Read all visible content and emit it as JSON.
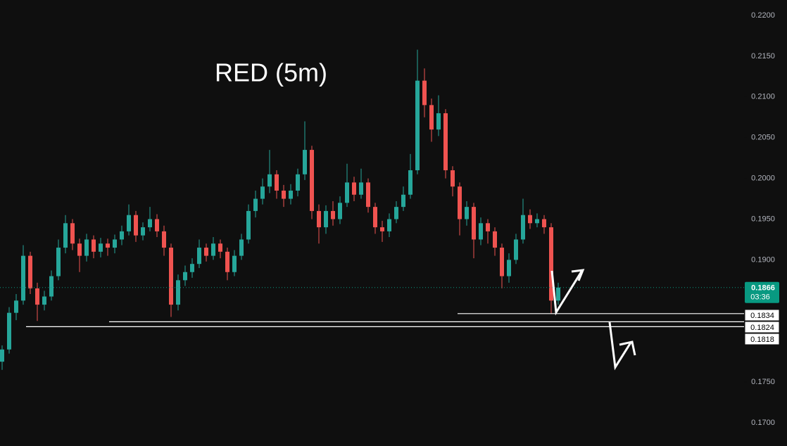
{
  "chart_data": {
    "type": "candlestick",
    "title": "RED (5m)",
    "up_color": "#26a69a",
    "down_color": "#ef5350",
    "ylim": [
      0.16715,
      0.2219
    ],
    "yticks": [
      {
        "value": 0.22,
        "label": "0.2200"
      },
      {
        "value": 0.215,
        "label": "0.2150"
      },
      {
        "value": 0.21,
        "label": "0.2100"
      },
      {
        "value": 0.205,
        "label": "0.2050"
      },
      {
        "value": 0.2,
        "label": "0.2000"
      },
      {
        "value": 0.195,
        "label": "0.1950"
      },
      {
        "value": 0.19,
        "label": "0.1900"
      },
      {
        "value": 0.175,
        "label": "0.1750"
      },
      {
        "value": 0.17,
        "label": "0.1700"
      }
    ],
    "open": [
      0.1775,
      0.179,
      0.1835,
      0.185,
      0.1905,
      0.1865,
      0.1845,
      0.1855,
      0.188,
      0.1915,
      0.1945,
      0.192,
      0.1905,
      0.1925,
      0.191,
      0.192,
      0.1915,
      0.1925,
      0.1935,
      0.1955,
      0.193,
      0.194,
      0.195,
      0.1935,
      0.1915,
      0.1845,
      0.1875,
      0.1885,
      0.1895,
      0.1915,
      0.1905,
      0.192,
      0.191,
      0.1885,
      0.1905,
      0.1925,
      0.196,
      0.1975,
      0.199,
      0.2005,
      0.1985,
      0.1975,
      0.1985,
      0.2005,
      0.2035,
      0.196,
      0.194,
      0.196,
      0.195,
      0.197,
      0.1995,
      0.198,
      0.1995,
      0.1965,
      0.194,
      0.1935,
      0.195,
      0.1965,
      0.198,
      0.201,
      0.212,
      0.209,
      0.206,
      0.208,
      0.201,
      0.199,
      0.195,
      0.1965,
      0.1925,
      0.1945,
      0.1935,
      0.1915,
      0.188,
      0.19,
      0.1925,
      0.1955,
      0.1945,
      0.195,
      0.194,
      0.185
    ],
    "high": [
      0.1795,
      0.1842,
      0.1858,
      0.1918,
      0.191,
      0.1872,
      0.1862,
      0.1887,
      0.1925,
      0.1955,
      0.195,
      0.1926,
      0.1932,
      0.193,
      0.1927,
      0.1926,
      0.1931,
      0.1942,
      0.1968,
      0.196,
      0.1946,
      0.1965,
      0.1956,
      0.1942,
      0.192,
      0.1882,
      0.1893,
      0.1902,
      0.1925,
      0.192,
      0.1928,
      0.1925,
      0.1915,
      0.1912,
      0.1932,
      0.1968,
      0.1985,
      0.2,
      0.2035,
      0.201,
      0.1992,
      0.1993,
      0.2012,
      0.207,
      0.204,
      0.1968,
      0.1967,
      0.1972,
      0.1978,
      0.2018,
      0.2002,
      0.2012,
      0.2,
      0.197,
      0.1948,
      0.1957,
      0.1972,
      0.199,
      0.203,
      0.2158,
      0.2135,
      0.2098,
      0.2102,
      0.2085,
      0.2015,
      0.1995,
      0.1972,
      0.197,
      0.1952,
      0.195,
      0.194,
      0.192,
      0.1908,
      0.1932,
      0.1975,
      0.1962,
      0.1957,
      0.1955,
      0.1945,
      0.1872
    ],
    "low": [
      0.1765,
      0.1785,
      0.1826,
      0.1845,
      0.1858,
      0.1825,
      0.1838,
      0.185,
      0.1875,
      0.1908,
      0.1912,
      0.1885,
      0.1898,
      0.1902,
      0.1903,
      0.1905,
      0.1908,
      0.1918,
      0.193,
      0.1922,
      0.1924,
      0.1935,
      0.1928,
      0.1905,
      0.183,
      0.1838,
      0.1868,
      0.1878,
      0.189,
      0.1898,
      0.19,
      0.1902,
      0.1875,
      0.188,
      0.19,
      0.192,
      0.1952,
      0.1968,
      0.1982,
      0.1975,
      0.1965,
      0.1968,
      0.1978,
      0.1998,
      0.195,
      0.192,
      0.1932,
      0.1942,
      0.1944,
      0.1965,
      0.1972,
      0.1975,
      0.1958,
      0.1932,
      0.1922,
      0.1928,
      0.1945,
      0.196,
      0.1975,
      0.2005,
      0.2075,
      0.2045,
      0.2052,
      0.2,
      0.1978,
      0.193,
      0.1942,
      0.1902,
      0.1918,
      0.192,
      0.1905,
      0.1865,
      0.1872,
      0.1895,
      0.192,
      0.1938,
      0.194,
      0.1932,
      0.1834,
      0.1845
    ],
    "close": [
      0.179,
      0.1835,
      0.185,
      0.1905,
      0.1865,
      0.1845,
      0.1855,
      0.188,
      0.1915,
      0.1945,
      0.192,
      0.1905,
      0.1925,
      0.191,
      0.192,
      0.1915,
      0.1925,
      0.1935,
      0.1955,
      0.193,
      0.194,
      0.195,
      0.1935,
      0.1915,
      0.1845,
      0.1875,
      0.1885,
      0.1895,
      0.1915,
      0.1905,
      0.192,
      0.191,
      0.1885,
      0.1905,
      0.1925,
      0.196,
      0.1975,
      0.199,
      0.2005,
      0.1985,
      0.1975,
      0.1985,
      0.2005,
      0.2035,
      0.196,
      0.194,
      0.196,
      0.195,
      0.197,
      0.1995,
      0.198,
      0.1995,
      0.1965,
      0.194,
      0.1935,
      0.195,
      0.1965,
      0.198,
      0.201,
      0.212,
      0.209,
      0.206,
      0.208,
      0.201,
      0.199,
      0.195,
      0.1965,
      0.1925,
      0.1945,
      0.1935,
      0.1915,
      0.188,
      0.19,
      0.1925,
      0.1955,
      0.1945,
      0.195,
      0.194,
      0.185,
      0.1866
    ],
    "current_price": 0.1866,
    "countdown": "03:36",
    "price_color": "#089981",
    "levels": [
      0.1834,
      0.1824,
      0.1818
    ]
  }
}
